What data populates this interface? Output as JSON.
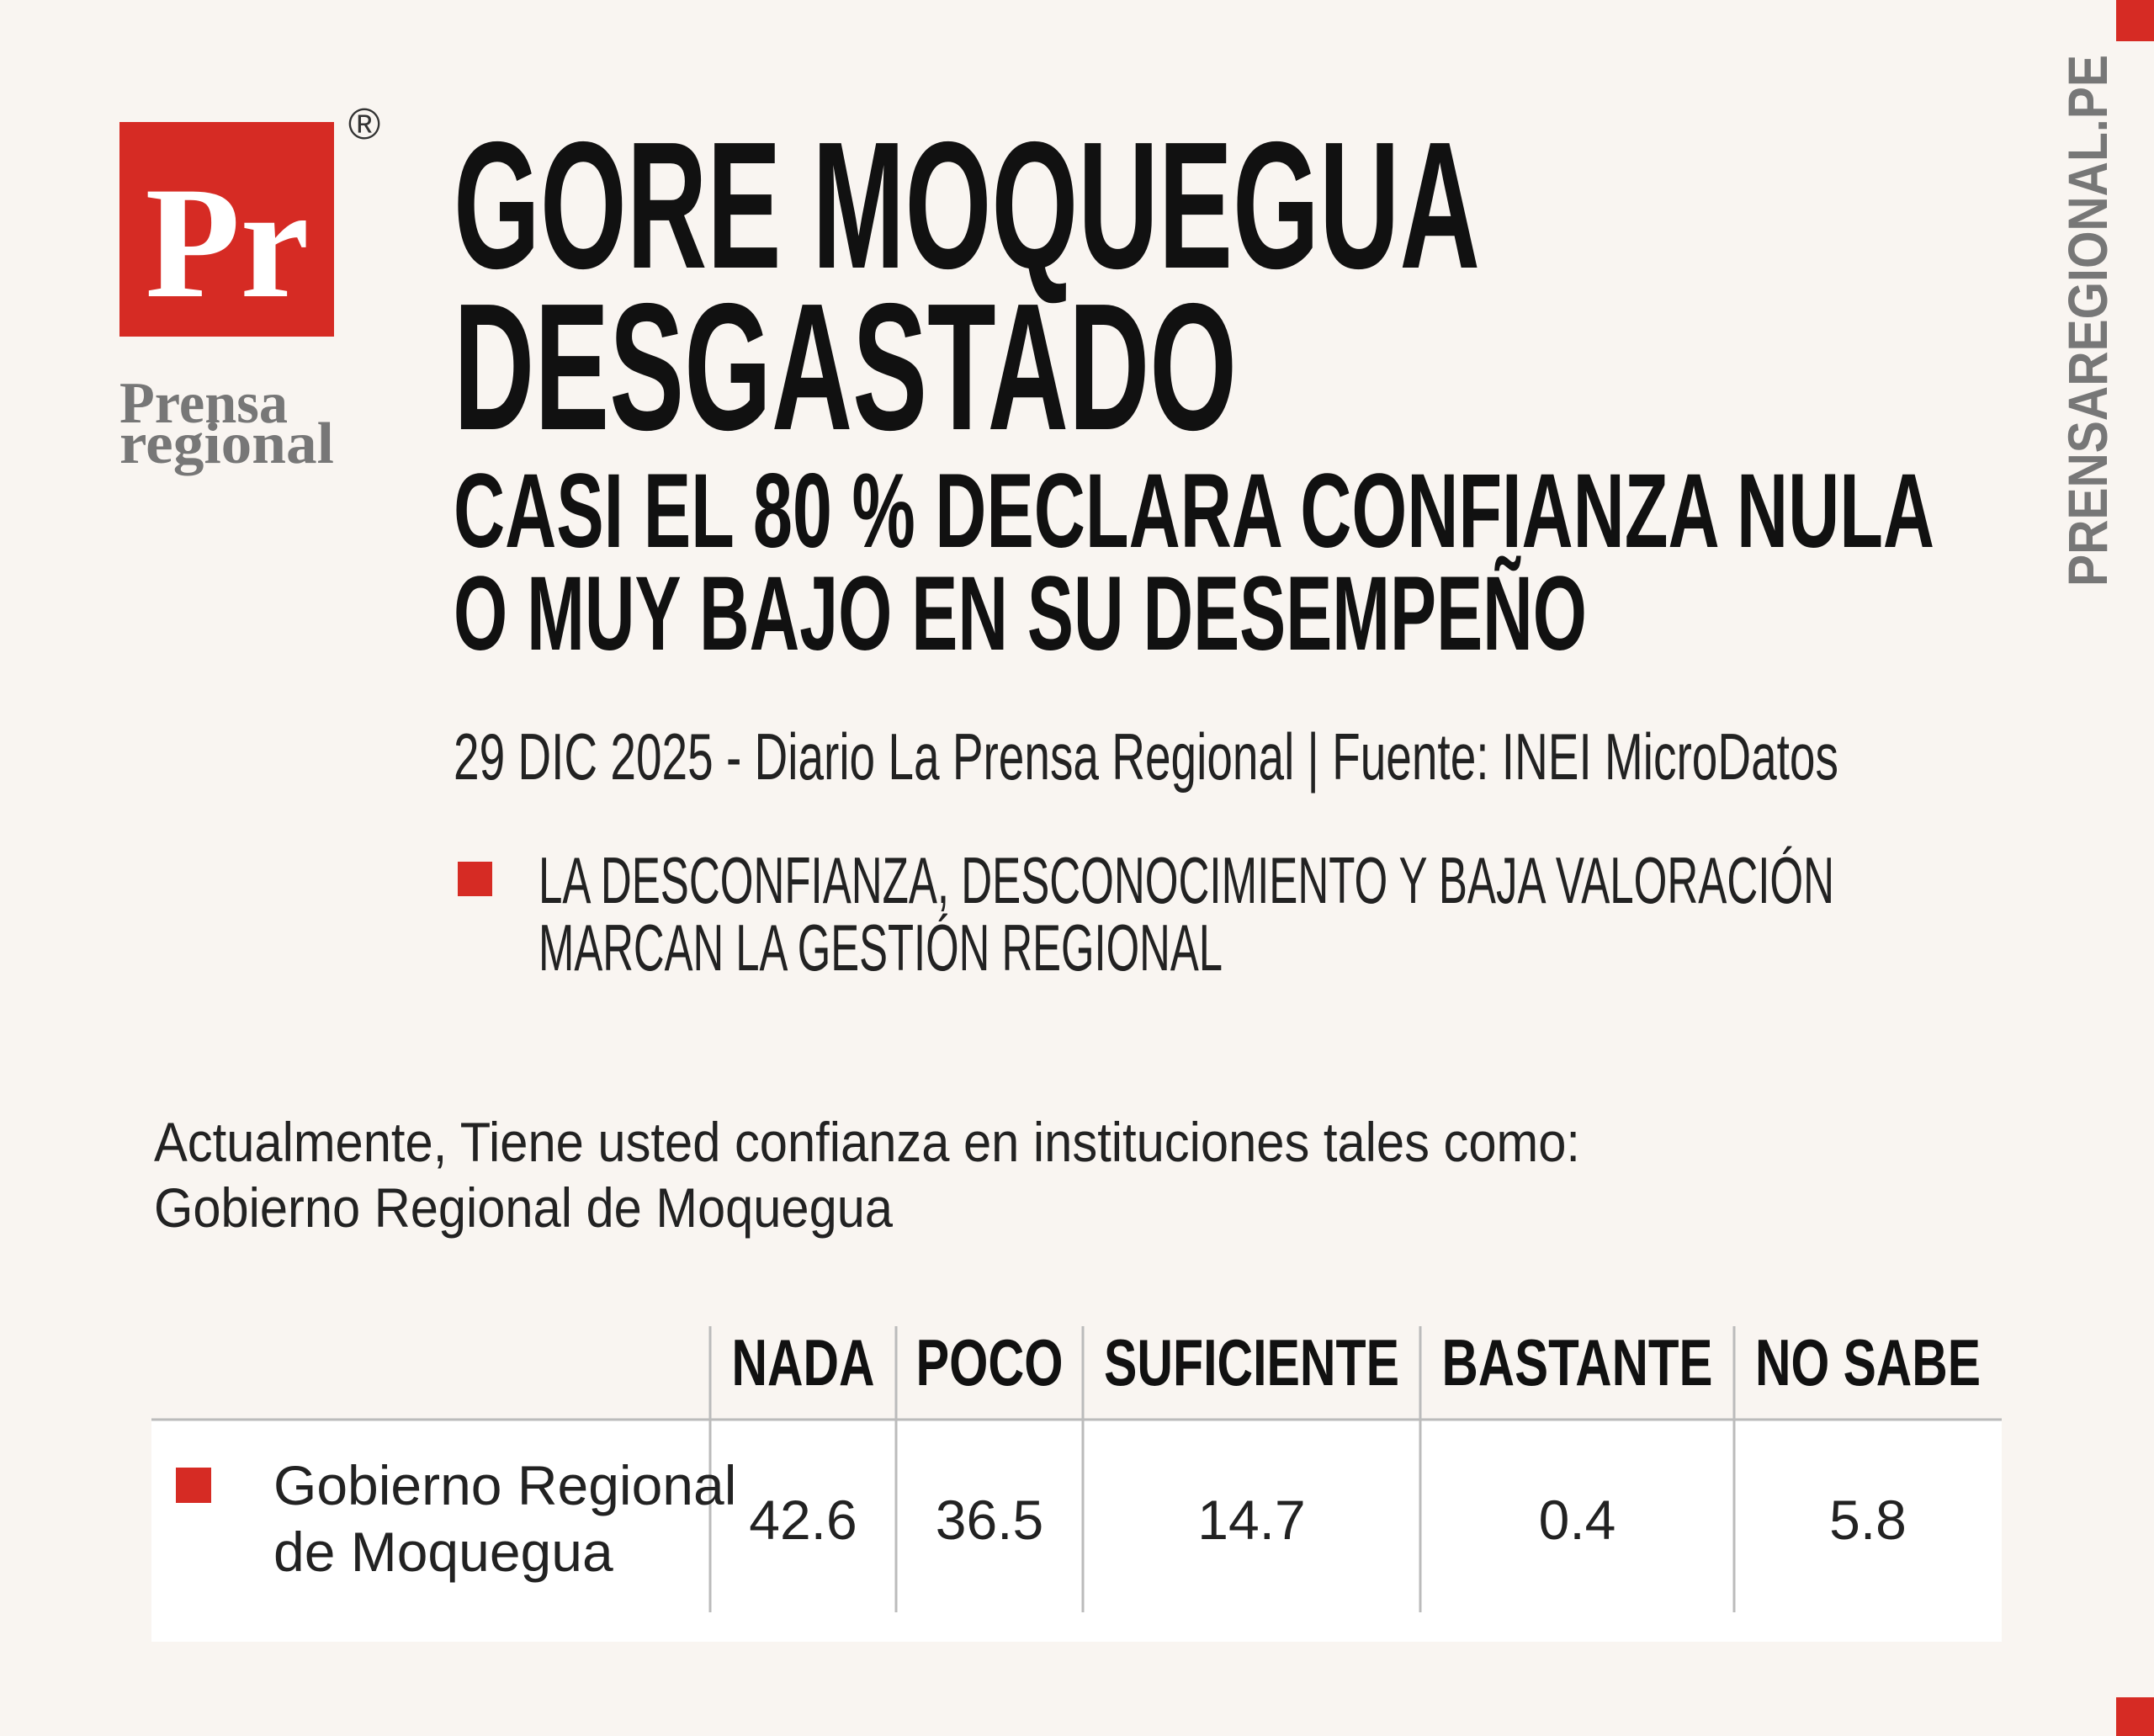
{
  "logo": {
    "mark": "Pr",
    "registered": "®",
    "name": [
      "Prensa",
      "regional"
    ]
  },
  "side_label": "PRENSAREGIONAL.PE",
  "header": {
    "title": [
      "GORE MOQUEGUA",
      "DESGASTADO"
    ],
    "subtitle": [
      "CASI EL 80 % DECLARA CONFIANZA NULA",
      "O MUY BAJO EN SU DESEMPEÑO"
    ],
    "dateline": "29 DIC 2025 - Diario La Prensa Regional | Fuente: INEI MicroDatos",
    "highlight": [
      "LA DESCONFIANZA, DESCONOCIMIENTO Y BAJA VALORACIÓN",
      "MARCAN LA GESTIÓN REGIONAL"
    ]
  },
  "question": [
    "Actualmente, Tiene usted confianza en instituciones tales como:",
    "Gobierno Regional de Moquegua"
  ],
  "table": {
    "columns": [
      "NADA",
      "POCO",
      "SUFICIENTE",
      "BASTANTE",
      "NO SABE"
    ],
    "rows": [
      {
        "label": [
          "Gobierno Regional",
          "de Moquegua"
        ],
        "values": [
          42.6,
          36.5,
          14.7,
          0.4,
          5.8
        ]
      }
    ]
  }
}
